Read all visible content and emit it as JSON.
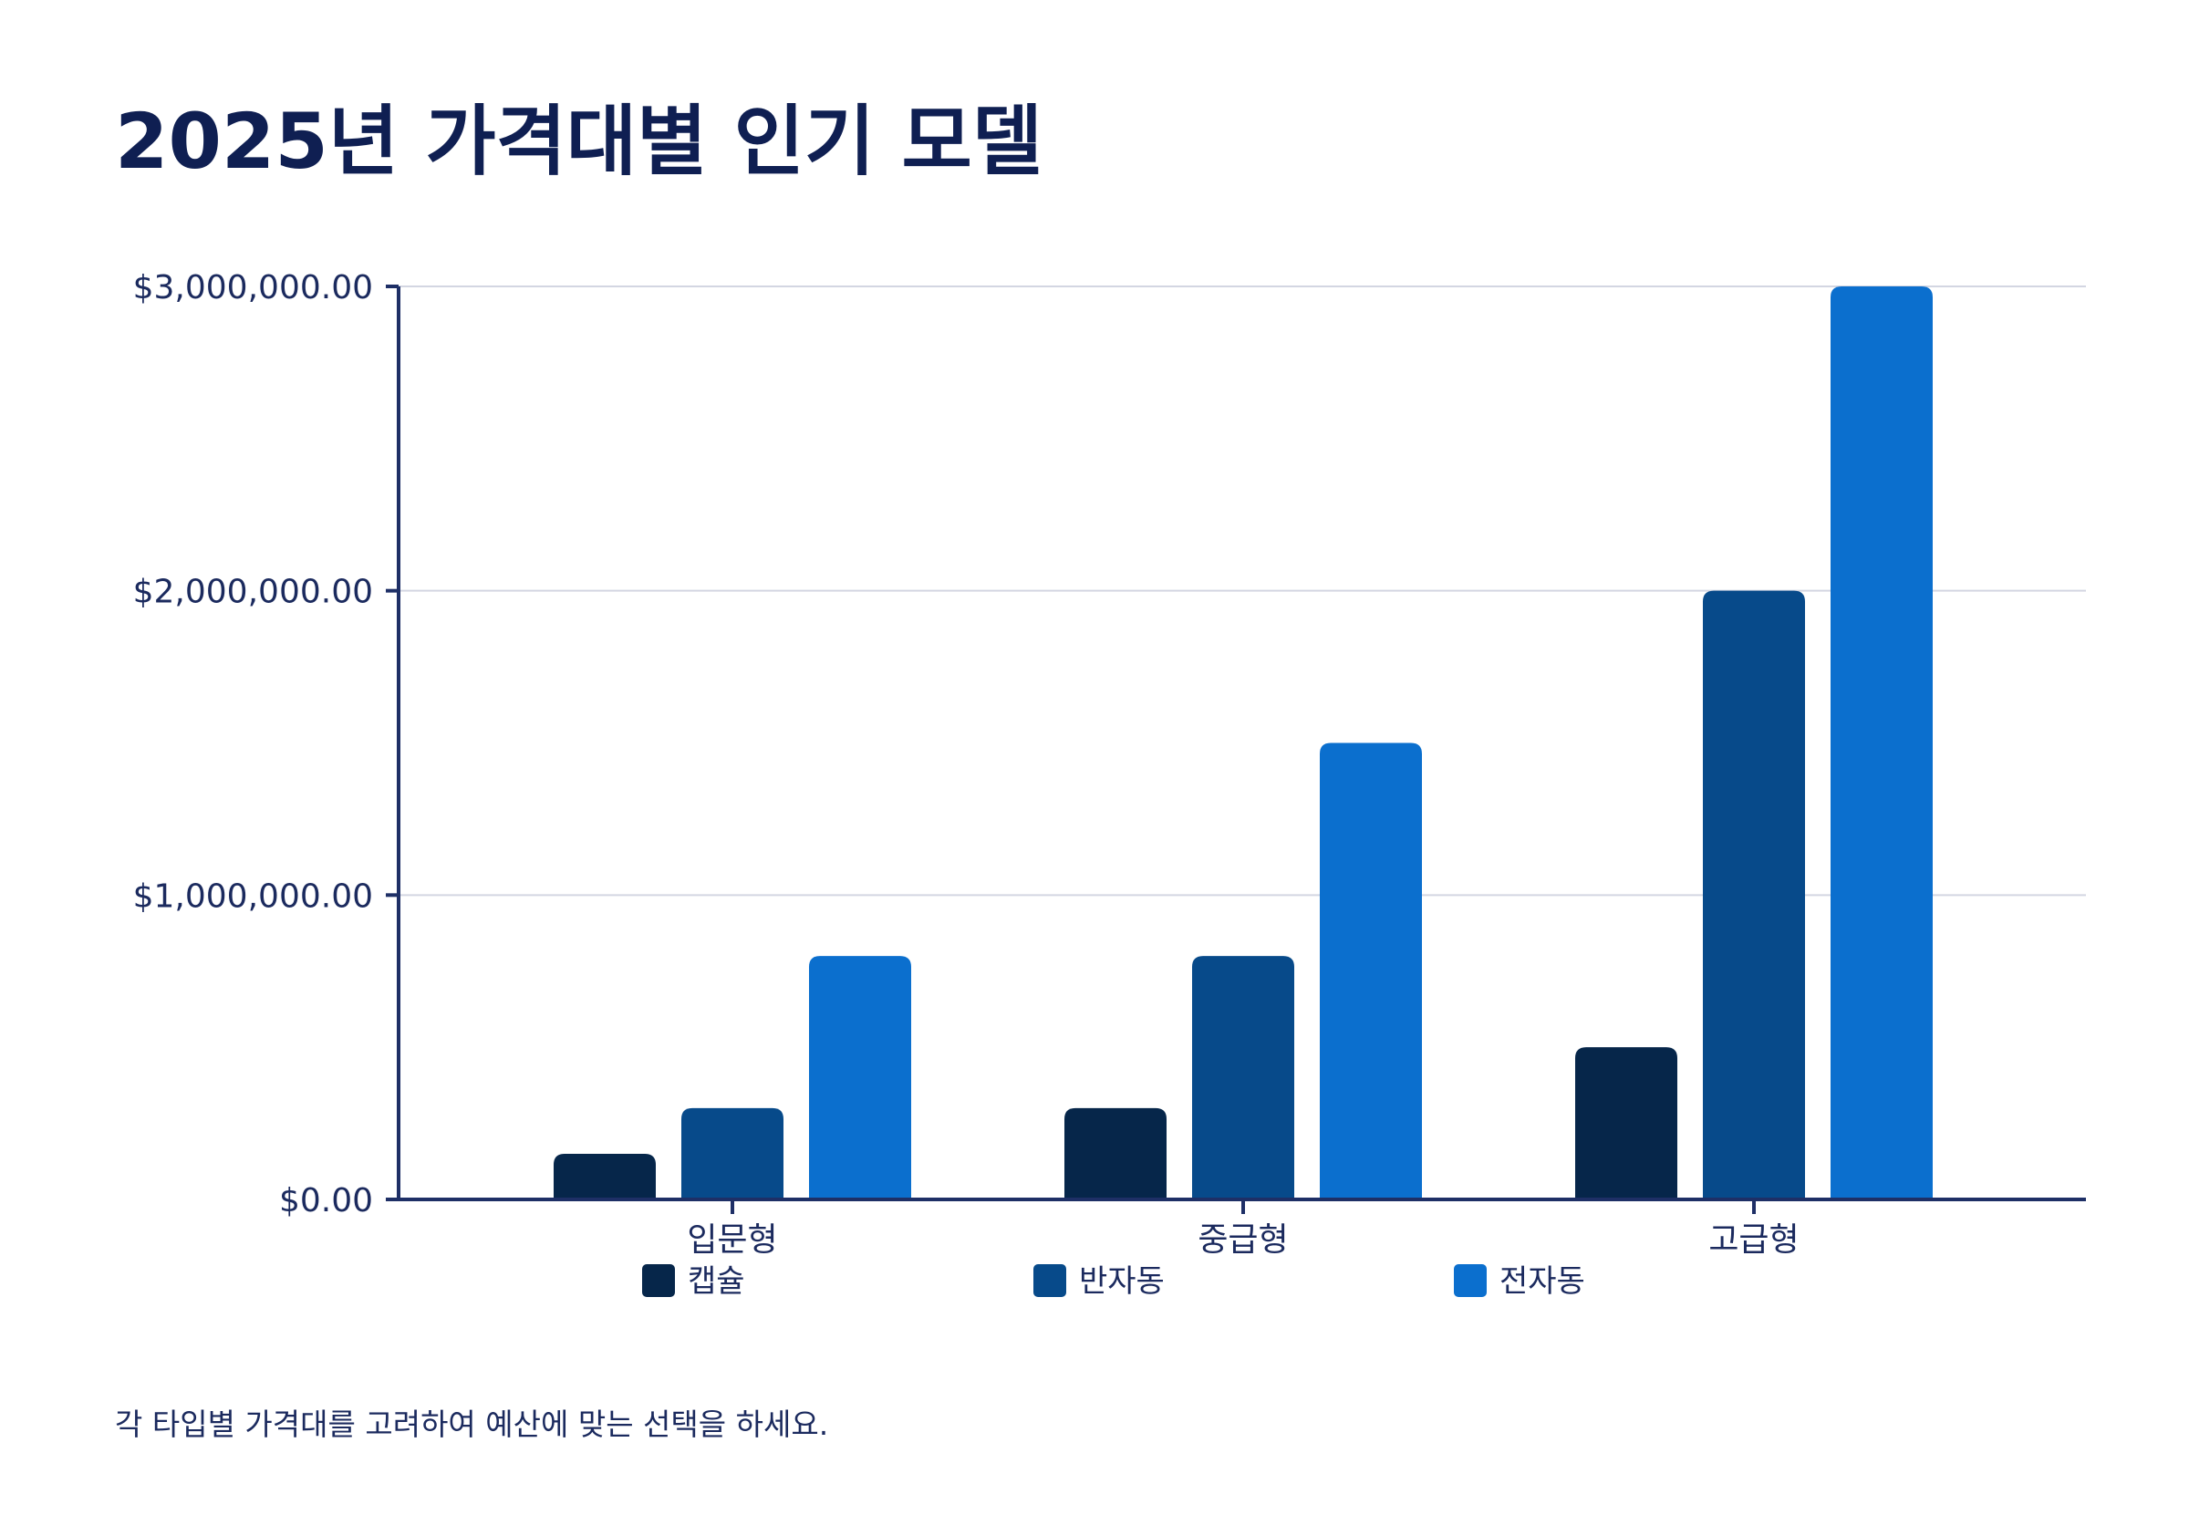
{
  "chart_data": {
    "type": "bar",
    "title": "2025년 가격대별 인기 모델",
    "categories": [
      "입문형",
      "중급형",
      "고급형"
    ],
    "series": [
      {
        "name": "캡슐",
        "color": "#06264a",
        "values": [
          150000,
          300000,
          500000
        ]
      },
      {
        "name": "반자동",
        "color": "#074a8a",
        "values": [
          300000,
          800000,
          2000000
        ]
      },
      {
        "name": "전자동",
        "color": "#0b6fce",
        "values": [
          800000,
          1500000,
          3000000
        ]
      }
    ],
    "ylim": [
      0,
      3000000
    ],
    "yticks": [
      0,
      1000000,
      2000000,
      3000000
    ],
    "ytick_labels": [
      "$0.00",
      "$1,000,000.00",
      "$2,000,000.00",
      "$3,000,000.00"
    ],
    "xlabel": "",
    "ylabel": "",
    "grid": true,
    "legend_position": "bottom",
    "footnote": "각 타입별 가격대를 고려하여 예산에 맞는 선택을 하세요."
  }
}
